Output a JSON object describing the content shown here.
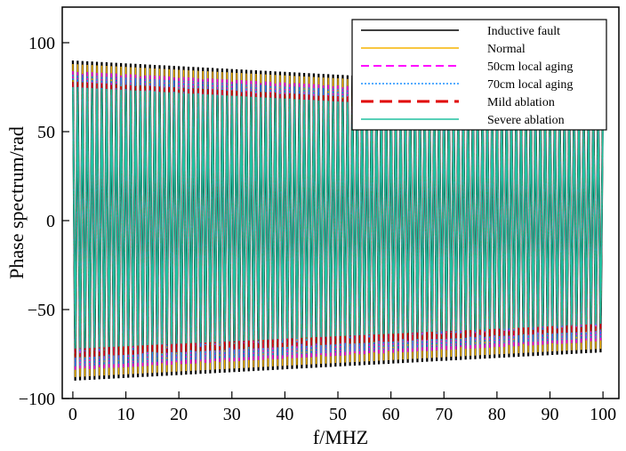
{
  "chart_data": {
    "type": "line",
    "title": "",
    "xlabel": "f/MHZ",
    "ylabel": "Phase spectrum/rad",
    "xlim": [
      -2,
      103
    ],
    "ylim": [
      -100,
      120
    ],
    "xticks": [
      0,
      10,
      20,
      30,
      40,
      50,
      60,
      70,
      80,
      90,
      100
    ],
    "yticks": [
      -100,
      -50,
      0,
      50,
      100
    ],
    "grid": false,
    "legend_position": "top-right",
    "oscillation_cycles": 110,
    "series": [
      {
        "name": "Inductive fault",
        "color": "#000000",
        "dash": "solid",
        "x": [
          0,
          100
        ],
        "upper": [
          90,
          74
        ],
        "lower": [
          -90,
          -74
        ]
      },
      {
        "name": "Normal",
        "color": "#f5b400",
        "dash": "solid",
        "x": [
          0,
          100
        ],
        "upper": [
          88,
          72
        ],
        "lower": [
          -88,
          -72
        ]
      },
      {
        "name": "50cm local aging",
        "color": "#ff00ff",
        "dash": "long-dash",
        "x": [
          0,
          100
        ],
        "upper": [
          84,
          68
        ],
        "lower": [
          -84,
          -68
        ]
      },
      {
        "name": "70cm local aging",
        "color": "#1e90ff",
        "dash": "dotted",
        "x": [
          0,
          100
        ],
        "upper": [
          82,
          66
        ],
        "lower": [
          -82,
          -66
        ]
      },
      {
        "name": "Mild ablation",
        "color": "#e00000",
        "dash": "long-dash",
        "x": [
          0,
          100
        ],
        "upper": [
          78,
          62
        ],
        "lower": [
          -77,
          -62
        ]
      },
      {
        "name": "Severe ablation",
        "color": "#20c0a0",
        "dash": "solid",
        "x": [
          0,
          100
        ],
        "upper": [
          75,
          59
        ],
        "lower": [
          -72,
          -58
        ]
      }
    ]
  }
}
